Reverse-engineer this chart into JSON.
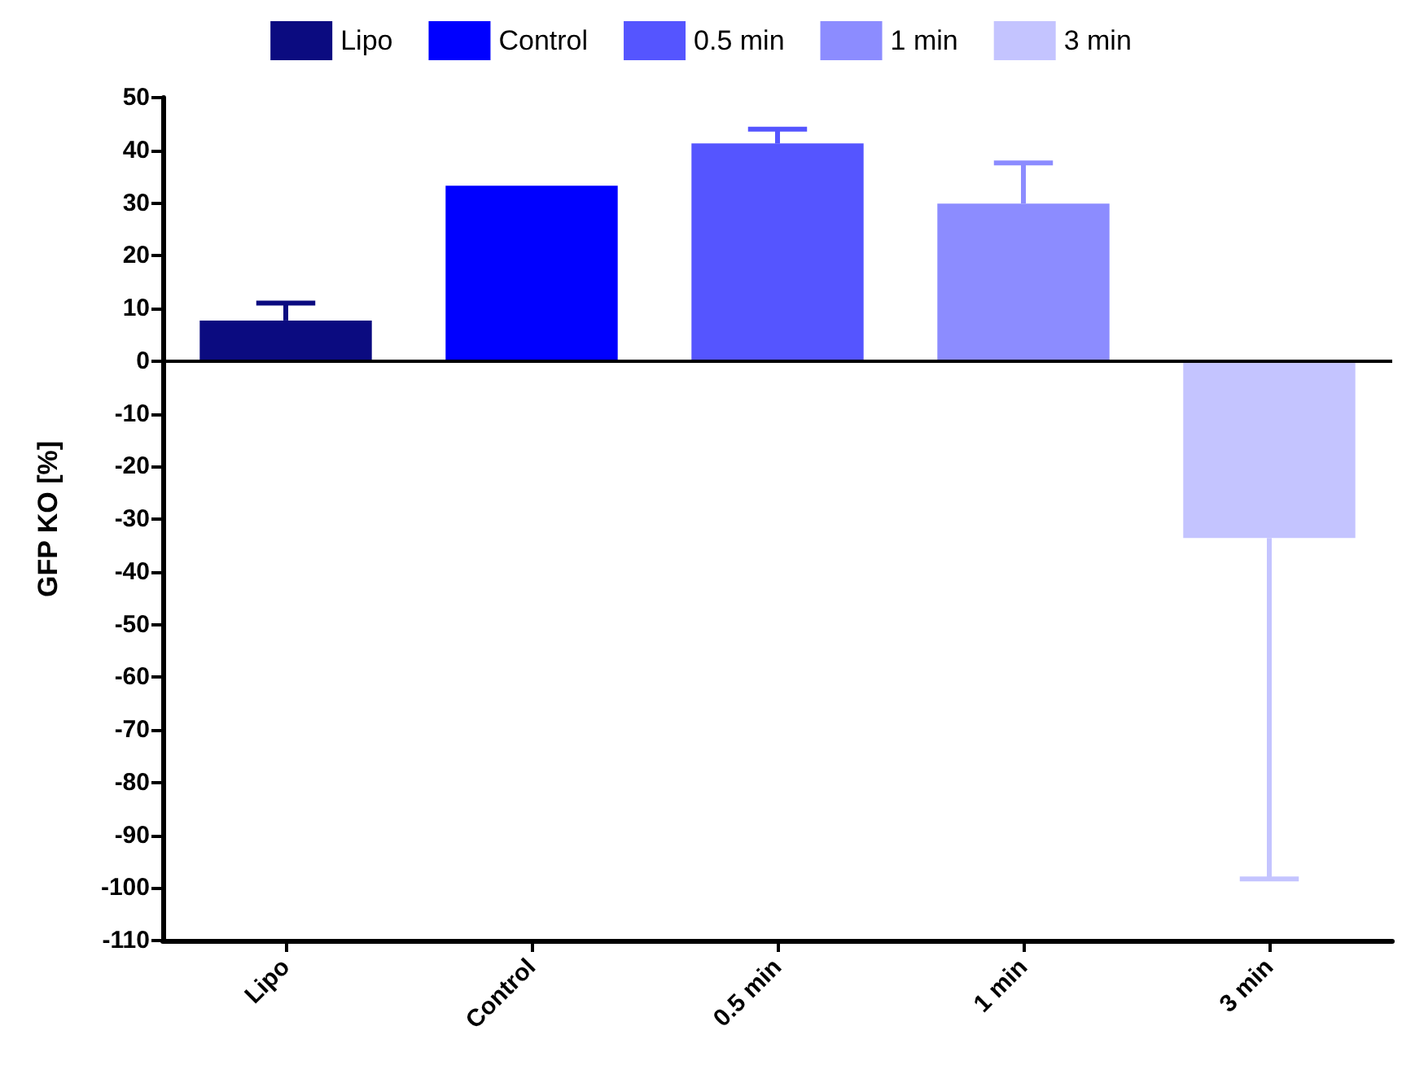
{
  "chart_data": {
    "type": "bar",
    "ylabel": "GFP KO [%]",
    "categories": [
      "Lipo",
      "Control",
      "0.5 min",
      "1 min",
      "3 min"
    ],
    "series": [
      {
        "name": "Lipo",
        "color": "#0b0b80",
        "values": [
          7.7,
          null,
          null,
          null,
          null
        ],
        "errors": [
          [
            7.7,
            11
          ],
          null,
          null,
          null,
          null
        ]
      },
      {
        "name": "Control",
        "color": "#0000ff",
        "values": [
          null,
          33.3,
          null,
          null,
          null
        ],
        "errors": [
          null,
          null,
          null,
          null,
          null
        ]
      },
      {
        "name": "0.5 min",
        "color": "#5555ff",
        "values": [
          null,
          null,
          41.3,
          null,
          null
        ],
        "errors": [
          null,
          null,
          [
            41.3,
            44
          ],
          null,
          null
        ]
      },
      {
        "name": "1 min",
        "color": "#8c8cff",
        "values": [
          null,
          null,
          null,
          29.9,
          null
        ],
        "errors": [
          null,
          null,
          null,
          [
            29.9,
            37.6
          ],
          null
        ]
      },
      {
        "name": "3 min",
        "color": "#c4c4ff",
        "values": [
          null,
          null,
          null,
          null,
          -33.6
        ],
        "errors": [
          null,
          null,
          null,
          null,
          [
            -98.3,
            -33.6
          ]
        ]
      }
    ],
    "ref_lines": [
      {
        "axis": "y",
        "value": 0,
        "color": "#000000"
      }
    ],
    "ylim": [
      -110,
      50
    ],
    "yticks": [
      -110,
      -100,
      -90,
      -80,
      -70,
      -60,
      -50,
      -40,
      -30,
      -20,
      -10,
      0,
      10,
      20,
      30,
      40,
      50
    ],
    "grid": false,
    "legend": "top"
  }
}
